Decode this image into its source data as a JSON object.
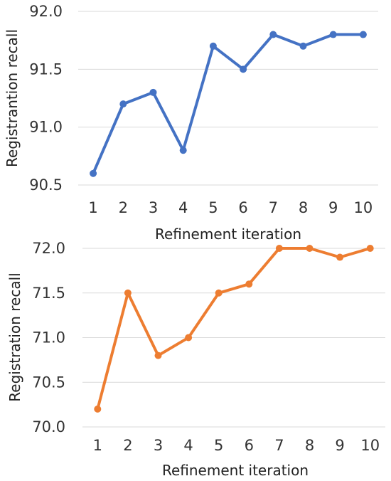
{
  "chart_data": [
    {
      "type": "line",
      "title": "",
      "xlabel": "Refinement iteration",
      "ylabel": "Registrantion recall",
      "categories": [
        "1",
        "2",
        "3",
        "4",
        "5",
        "6",
        "7",
        "8",
        "9",
        "10"
      ],
      "values": [
        90.6,
        91.2,
        91.3,
        90.8,
        91.7,
        91.5,
        91.8,
        91.7,
        91.8,
        91.8
      ],
      "ylim": [
        90.5,
        92.0
      ],
      "yticks": [
        "90.5",
        "91.0",
        "91.5",
        "92.0"
      ],
      "grid": true,
      "color": "#4472c4"
    },
    {
      "type": "line",
      "title": "",
      "xlabel": "Refinement iteration",
      "ylabel": "Registration recall",
      "categories": [
        "1",
        "2",
        "3",
        "4",
        "5",
        "6",
        "7",
        "8",
        "9",
        "10"
      ],
      "values": [
        70.2,
        71.5,
        70.8,
        71.0,
        71.5,
        71.6,
        72.0,
        72.0,
        71.9,
        72.0
      ],
      "ylim": [
        70.0,
        72.0
      ],
      "yticks": [
        "70.0",
        "70.5",
        "71.0",
        "71.5",
        "72.0"
      ],
      "grid": true,
      "color": "#ed7d31"
    }
  ]
}
